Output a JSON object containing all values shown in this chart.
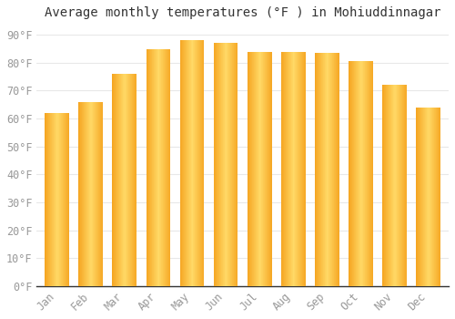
{
  "title": "Average monthly temperatures (°F ) in Mohiuddinnagar",
  "months": [
    "Jan",
    "Feb",
    "Mar",
    "Apr",
    "May",
    "Jun",
    "Jul",
    "Aug",
    "Sep",
    "Oct",
    "Nov",
    "Dec"
  ],
  "values": [
    62,
    66,
    76,
    85,
    88,
    87,
    84,
    84,
    83.5,
    80.5,
    72,
    64
  ],
  "bar_color_center": "#FFD966",
  "bar_color_edge": "#F5A623",
  "background_color": "#FFFFFF",
  "grid_color": "#E8E8E8",
  "yticks": [
    0,
    10,
    20,
    30,
    40,
    50,
    60,
    70,
    80,
    90
  ],
  "ylim": [
    0,
    93
  ],
  "title_fontsize": 10,
  "tick_fontsize": 8.5,
  "tick_color": "#999999",
  "bar_width": 0.72
}
